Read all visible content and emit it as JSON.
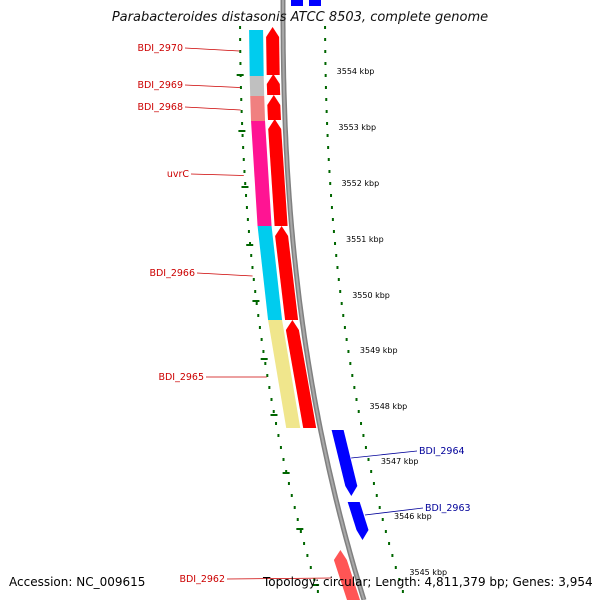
{
  "title": "Parabacteroides distasonis ATCC 8503, complete genome",
  "footer": {
    "accession": "Accession: NC_009615",
    "summary": "Topology: circular; Length: 4,811,379 bp; Genes: 3,954"
  },
  "colors": {
    "backbone": "#808080",
    "forward_arrow": "#ff0000",
    "reverse_arrow": "#0000ff",
    "forward_label": "#cc0000",
    "reverse_label": "#000099",
    "scale_dots": "#006600",
    "cog_cyan": "#00ccee",
    "cog_grey": "#c0c0c0",
    "cog_salmon": "#f08080",
    "cog_magenta": "#ff1493",
    "cog_khaki": "#f0e68c"
  },
  "ticks": [
    {
      "label": "3554 kbp"
    },
    {
      "label": "3553 kbp"
    },
    {
      "label": "3552 kbp"
    },
    {
      "label": "3551 kbp"
    },
    {
      "label": "3550 kbp"
    },
    {
      "label": "3549 kbp"
    },
    {
      "label": "3548 kbp"
    },
    {
      "label": "3547 kbp"
    },
    {
      "label": "3546 kbp"
    },
    {
      "label": "3545 kbp"
    }
  ],
  "forward_genes": [
    {
      "name": "BDI_2970",
      "cog_color": "cog_cyan"
    },
    {
      "name": "BDI_2969",
      "cog_color": "cog_grey"
    },
    {
      "name": "BDI_2968",
      "cog_color": "cog_salmon"
    },
    {
      "name": "uvrC",
      "cog_color": "cog_magenta"
    },
    {
      "name": "BDI_2966",
      "cog_color": "cog_cyan"
    },
    {
      "name": "BDI_2965",
      "cog_color": "cog_khaki"
    },
    {
      "name": "BDI_2962",
      "cog_color": ""
    }
  ],
  "reverse_genes": [
    {
      "name": "BDI_2964"
    },
    {
      "name": "BDI_2963"
    }
  ]
}
